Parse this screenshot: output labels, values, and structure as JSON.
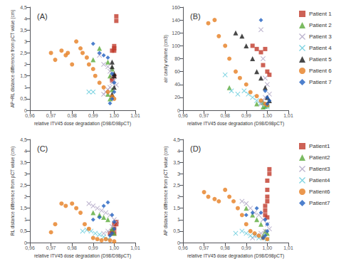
{
  "chart_data": [
    {
      "type": "scatter",
      "title": "(A)",
      "xlabel": "relative ITV45 dose degradation (D98/D98pCT)",
      "ylabel": "AP+RL distance difference from pCT value (cm)",
      "xlim": [
        0.96,
        1.01
      ],
      "ylim": [
        0,
        4.5
      ],
      "xticks": [
        {
          "value": 0.96,
          "label": "0,96"
        },
        {
          "value": 0.97,
          "label": "0,97"
        },
        {
          "value": 0.98,
          "label": "0,98"
        },
        {
          "value": 0.99,
          "label": "0,99"
        },
        {
          "value": 1.0,
          "label": "1,00"
        },
        {
          "value": 1.01,
          "label": "1,01"
        }
      ],
      "yticks": [
        0,
        {
          "value": 0.5,
          "label": "0,5"
        },
        1,
        {
          "value": 1.5,
          "label": "1,5"
        },
        2,
        {
          "value": 2.5,
          "label": "2,5"
        },
        3,
        {
          "value": 3.5,
          "label": "3,5"
        },
        4,
        {
          "value": 4.5,
          "label": "4,5"
        }
      ],
      "grid": false,
      "series": [
        {
          "color": "#c0392b",
          "marker": "square",
          "x": [
            1.0,
            0.999,
            1.001,
            1.001,
            1.0,
            1.0,
            0.999,
            0.999,
            1.0
          ],
          "values": [
            2.6,
            1.4,
            4.1,
            3.9,
            2.8,
            1.5,
            1.3,
            2.6,
            2.7
          ]
        },
        {
          "color": "#5aaa3a",
          "marker": "triangle",
          "x": [
            0.99,
            0.993,
            0.997,
            0.999,
            0.998,
            0.999,
            0.998,
            0.997
          ],
          "values": [
            2.2,
            2.7,
            2.1,
            1.8,
            1.5,
            0.9,
            0.5,
            0.7
          ]
        },
        {
          "color": "#aa9fc0",
          "marker": "x",
          "x": [
            0.993,
            0.995,
            0.997,
            0.998,
            0.999,
            1.0,
            1.001,
            0.999,
            0.998,
            0.997,
            0.996,
            0.995
          ],
          "values": [
            2.4,
            2.0,
            1.9,
            1.7,
            1.5,
            1.3,
            1.1,
            1.2,
            1.0,
            0.9,
            0.8,
            0.7
          ]
        },
        {
          "color": "#5bc8d9",
          "marker": "x",
          "x": [
            0.988,
            0.99
          ],
          "values": [
            0.8,
            0.8
          ]
        },
        {
          "color": "#1a1a1a",
          "marker": "triangle",
          "x": [
            0.999,
            0.999,
            1.0,
            1.0,
            1.0,
            0.999
          ],
          "values": [
            2.1,
            1.9,
            1.6,
            1.5,
            1.0,
            0.7
          ]
        },
        {
          "color": "#e67e22",
          "marker": "circle",
          "x": [
            0.97,
            0.972,
            0.975,
            0.977,
            0.978,
            0.98,
            0.982,
            0.984,
            0.985,
            0.987,
            0.988,
            0.99,
            0.991,
            0.993,
            0.995,
            0.997,
            0.999,
            1.0
          ],
          "values": [
            2.5,
            2.2,
            2.6,
            2.4,
            2.5,
            2.0,
            3.0,
            2.7,
            2.5,
            2.3,
            2.0,
            1.8,
            1.5,
            1.2,
            1.0,
            0.8,
            0.6,
            0.5
          ]
        },
        {
          "color": "#2060c0",
          "marker": "diamond",
          "x": [
            0.99,
            0.993,
            0.995,
            0.997,
            0.999,
            1.0,
            1.0,
            0.999,
            0.998
          ],
          "values": [
            2.9,
            2.5,
            2.4,
            2.3,
            1.6,
            1.2,
            0.8,
            0.5,
            0.3
          ]
        }
      ]
    },
    {
      "type": "scatter",
      "title": "(B)",
      "xlabel": "relative ITV45 dose degradation (D98/D98pCT)",
      "ylabel": "air cavity volume (cm3)",
      "xlim": [
        0.96,
        1.01
      ],
      "ylim": [
        0,
        160
      ],
      "xticks": [
        {
          "value": 0.96,
          "label": "0,96"
        },
        {
          "value": 0.97,
          "label": "0,97"
        },
        {
          "value": 0.98,
          "label": "0,98"
        },
        {
          "value": 0.99,
          "label": "0,99"
        },
        {
          "value": 1.0,
          "label": "1,00"
        },
        {
          "value": 1.01,
          "label": "1,01"
        }
      ],
      "yticks": [
        0,
        20,
        40,
        60,
        80,
        100,
        120,
        140,
        160
      ],
      "grid": false,
      "legend": "right",
      "series": [
        {
          "name": "Patient 1",
          "color": "#c0392b",
          "marker": "square",
          "x": [
            0.993,
            0.995,
            0.997,
            0.999,
            1.0,
            1.001,
            0.998
          ],
          "values": [
            100,
            95,
            90,
            95,
            60,
            55,
            70
          ]
        },
        {
          "name": "Patient 2",
          "color": "#5aaa3a",
          "marker": "triangle",
          "x": [
            0.982,
            0.995,
            0.998,
            1.0,
            1.0,
            0.999,
            0.998
          ],
          "values": [
            35,
            10,
            12,
            10,
            8,
            6,
            5
          ]
        },
        {
          "name": "Patient 3",
          "color": "#aa9fc0",
          "marker": "x",
          "x": [
            0.997,
            0.998,
            0.999,
            1.0,
            1.001,
            0.999,
            0.998,
            0.997
          ],
          "values": [
            125,
            80,
            50,
            40,
            25,
            20,
            15,
            10
          ]
        },
        {
          "name": "Patient 4",
          "color": "#5bc8d9",
          "marker": "x",
          "x": [
            0.98,
            0.983,
            0.986,
            0.989,
            0.991,
            0.993,
            0.995,
            0.997,
            0.999,
            1.0
          ],
          "values": [
            55,
            30,
            25,
            30,
            25,
            20,
            15,
            12,
            8,
            5
          ]
        },
        {
          "name": "Patient 5",
          "color": "#1a1a1a",
          "marker": "triangle",
          "x": [
            0.985,
            0.988,
            0.99,
            0.993,
            0.995,
            0.997,
            0.999,
            1.0,
            1.001
          ],
          "values": [
            120,
            115,
            100,
            80,
            60,
            50,
            35,
            20,
            15
          ]
        },
        {
          "name": "Patient 6",
          "color": "#e67e22",
          "marker": "circle",
          "x": [
            0.972,
            0.975,
            0.977,
            0.98,
            0.982,
            0.985,
            0.987,
            0.99,
            0.992,
            0.995,
            0.997,
            0.999,
            1.0
          ],
          "values": [
            135,
            140,
            115,
            100,
            80,
            60,
            50,
            40,
            28,
            22,
            15,
            10,
            8
          ]
        },
        {
          "name": "Patient 7",
          "color": "#2060c0",
          "marker": "diamond",
          "x": [
            0.997,
            0.999,
            1.0,
            1.001,
            1.0
          ],
          "values": [
            140,
            30,
            20,
            15,
            10
          ]
        }
      ]
    },
    {
      "type": "scatter",
      "title": "(C)",
      "xlabel": "relative ITV45 dose degradation (D98/D98pCT)",
      "ylabel": "RL distance difference from pCT value (cm)",
      "xlim": [
        0.96,
        1.01
      ],
      "ylim": [
        0,
        4.5
      ],
      "xticks": [
        {
          "value": 0.96,
          "label": "0,96"
        },
        {
          "value": 0.97,
          "label": "0,97"
        },
        {
          "value": 0.98,
          "label": "0,98"
        },
        {
          "value": 0.99,
          "label": "0,99"
        },
        {
          "value": 1.0,
          "label": "1,00"
        },
        {
          "value": 1.01,
          "label": "1,01"
        }
      ],
      "yticks": [
        0,
        {
          "value": 0.5,
          "label": "0,5"
        },
        1,
        {
          "value": 1.5,
          "label": "1,5"
        },
        2,
        {
          "value": 2.5,
          "label": "2,5"
        },
        3,
        {
          "value": 3.5,
          "label": "3,5"
        },
        4,
        {
          "value": 4.5,
          "label": "4,5"
        }
      ],
      "grid": false,
      "series": [
        {
          "color": "#c0392b",
          "marker": "square",
          "x": [
            1.0,
            1.0,
            0.999,
            0.998,
            1.001,
            1.001,
            1.0
          ],
          "values": [
            0.8,
            0.6,
            0.5,
            0.4,
            0.8,
            0.9,
            0.4
          ]
        },
        {
          "color": "#5aaa3a",
          "marker": "triangle",
          "x": [
            0.99,
            0.993,
            0.995,
            0.997,
            0.999,
            1.0
          ],
          "values": [
            1.3,
            1.2,
            1.1,
            1.0,
            0.6,
            0.4
          ]
        },
        {
          "color": "#aa9fc0",
          "marker": "x",
          "x": [
            0.988,
            0.99,
            0.992,
            0.994,
            0.996,
            0.998,
            1.0,
            1.001,
            0.999,
            0.997,
            0.995
          ],
          "values": [
            1.7,
            1.6,
            1.5,
            1.4,
            1.3,
            1.2,
            1.0,
            0.9,
            0.7,
            0.5,
            0.4
          ]
        },
        {
          "color": "#5bc8d9",
          "marker": "x",
          "x": [
            0.985,
            0.987,
            0.989,
            0.991,
            0.993,
            0.995,
            0.997
          ],
          "values": [
            0.5,
            0.55,
            0.5,
            0.4,
            0.35,
            0.25,
            0.15
          ]
        },
        {
          "color": "#e67e22",
          "marker": "circle",
          "x": [
            0.97,
            0.972,
            0.975,
            0.977,
            0.98,
            0.982,
            0.984,
            0.986,
            0.988,
            0.99,
            0.992,
            0.994,
            0.996,
            0.998,
            1.0
          ],
          "values": [
            0.45,
            0.8,
            1.7,
            1.6,
            1.7,
            1.5,
            1.3,
            0.8,
            0.6,
            0.2,
            0.15,
            0.1,
            0.15,
            0.1,
            0.05
          ]
        },
        {
          "color": "#2060c0",
          "marker": "diamond",
          "x": [
            0.99,
            0.993,
            0.995,
            0.997,
            0.999,
            1.0,
            1.0,
            0.999,
            0.998
          ],
          "values": [
            1.0,
            1.1,
            1.6,
            1.75,
            1.2,
            0.9,
            0.6,
            0.4,
            0.3
          ]
        }
      ]
    },
    {
      "type": "scatter",
      "title": "(D)",
      "xlabel": "relative ITV45 dose degradation (D98/D98pCT)",
      "ylabel": "AP distance difference from pCT value (cm)",
      "xlim": [
        0.96,
        1.01
      ],
      "ylim": [
        0,
        4.5
      ],
      "xticks": [
        {
          "value": 0.96,
          "label": "0,96"
        },
        {
          "value": 0.97,
          "label": "0,97"
        },
        {
          "value": 0.98,
          "label": "0,98"
        },
        {
          "value": 0.99,
          "label": "0,99"
        },
        {
          "value": 1.0,
          "label": "1,00"
        },
        {
          "value": 1.01,
          "label": "1,01"
        }
      ],
      "yticks": [
        0,
        {
          "value": 0.5,
          "label": "0,5"
        },
        1,
        {
          "value": 1.5,
          "label": "1,5"
        },
        2,
        {
          "value": 2.5,
          "label": "2,5"
        },
        3,
        {
          "value": 3.5,
          "label": "3,5"
        },
        4,
        {
          "value": 4.5,
          "label": "4,5"
        }
      ],
      "grid": false,
      "legend": "right",
      "series": [
        {
          "name": "Patient1",
          "color": "#c0392b",
          "marker": "square",
          "x": [
            1.0,
            1.0,
            0.999,
            1.001,
            1.001,
            1.0,
            0.999,
            0.999,
            1.0,
            1.0
          ],
          "values": [
            2.0,
            1.8,
            1.2,
            3.2,
            3.0,
            2.7,
            1.6,
            1.4,
            2.3,
            1.1
          ]
        },
        {
          "name": "Patient2",
          "color": "#5aaa3a",
          "marker": "triangle",
          "x": [
            0.99,
            0.993,
            0.995,
            0.997,
            0.999,
            1.0,
            0.998
          ],
          "values": [
            1.5,
            1.2,
            1.0,
            0.8,
            0.5,
            0.4,
            0.3
          ]
        },
        {
          "name": "Patient3",
          "color": "#aa9fc0",
          "marker": "x",
          "x": [
            0.988,
            0.99,
            0.992,
            0.994,
            0.996,
            0.998,
            1.0,
            1.001,
            0.999,
            0.997,
            0.995,
            0.993
          ],
          "values": [
            1.8,
            1.7,
            1.5,
            1.3,
            1.2,
            1.0,
            0.8,
            0.6,
            0.5,
            0.4,
            0.3,
            0.2
          ]
        },
        {
          "name": "Patient4",
          "color": "#5bc8d9",
          "marker": "x",
          "x": [
            0.985,
            0.988,
            0.99,
            0.992,
            0.994,
            0.996,
            0.998,
            1.0
          ],
          "values": [
            0.4,
            0.5,
            0.4,
            0.3,
            0.3,
            0.2,
            0.2,
            0.15
          ]
        },
        {
          "name": "Patient6",
          "color": "#e67e22",
          "marker": "circle",
          "x": [
            0.97,
            0.972,
            0.975,
            0.977,
            0.98,
            0.982,
            0.984,
            0.986,
            0.988,
            0.99,
            0.992,
            0.994,
            0.996,
            0.998,
            1.0
          ],
          "values": [
            2.2,
            2.0,
            1.9,
            1.8,
            2.3,
            2.0,
            1.8,
            1.5,
            1.2,
            0.8,
            0.5,
            0.4,
            0.3,
            0.2,
            0.15
          ]
        },
        {
          "name": "Patient7",
          "color": "#2060c0",
          "marker": "diamond",
          "x": [
            0.99,
            0.993,
            0.995,
            0.997,
            0.999,
            1.0,
            1.0,
            0.999,
            0.998
          ],
          "values": [
            1.2,
            1.3,
            1.5,
            1.3,
            1.0,
            0.8,
            0.5,
            0.3,
            0.2
          ]
        }
      ]
    }
  ]
}
